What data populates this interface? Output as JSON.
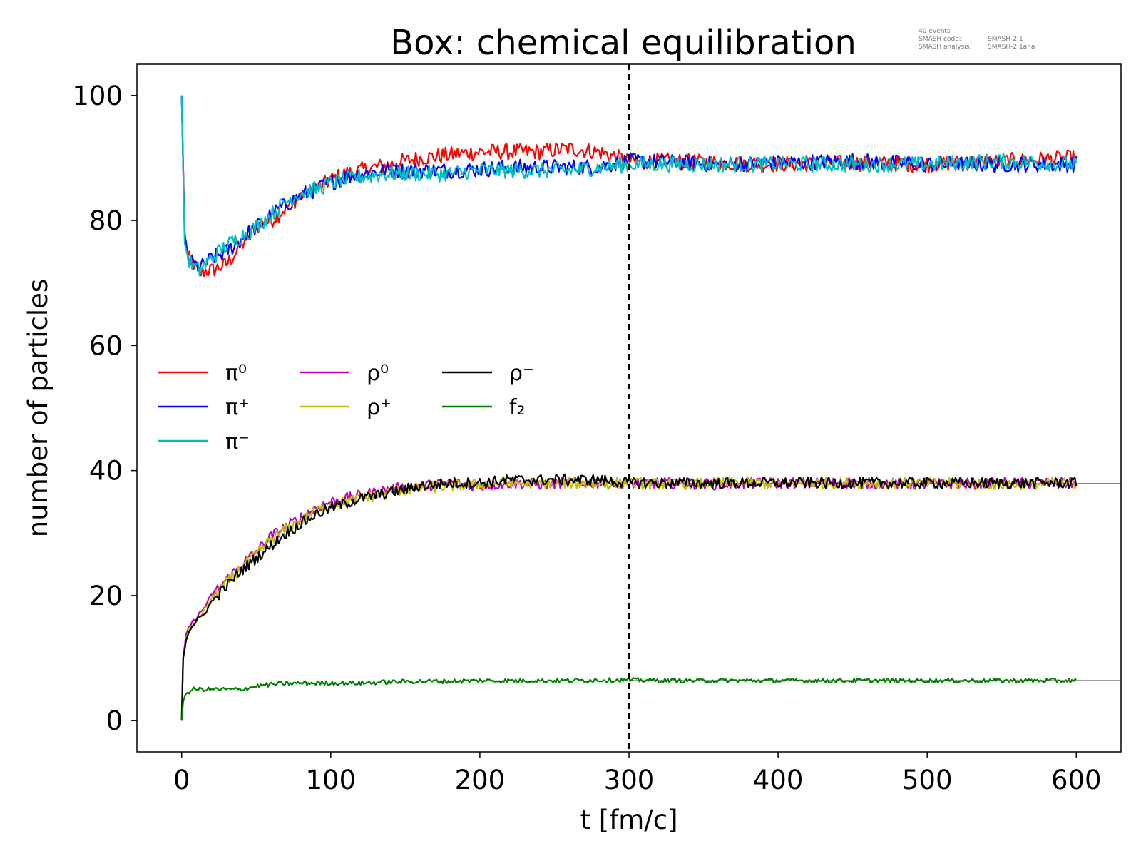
{
  "chart_data": {
    "type": "line",
    "title": "Box: chemical equilibration",
    "xlabel": "t [fm/c]",
    "ylabel": "number of particles",
    "xlim": [
      -30,
      630
    ],
    "ylim": [
      -5,
      105
    ],
    "xticks": [
      "0",
      "100",
      "200",
      "300",
      "400",
      "500",
      "600"
    ],
    "yticks": [
      "0",
      "20",
      "40",
      "60",
      "80",
      "100"
    ],
    "grid": false,
    "legend_position": "center-left",
    "equilibration_marker_t": 300,
    "annotation": {
      "events": "40 events",
      "code_label": "SMASH code:",
      "code_value": "SMASH-2.1",
      "analysis_label": "SMASH analysis:",
      "analysis_value": "SMASH-2.1ana"
    },
    "equilibrium_lines": [
      {
        "from_t": 300,
        "to_t": 630,
        "value": 89.2
      },
      {
        "from_t": 300,
        "to_t": 630,
        "value": 37.9
      },
      {
        "from_t": 300,
        "to_t": 630,
        "value": 6.4
      }
    ],
    "series": [
      {
        "name": "π⁰",
        "color": "#ff0000",
        "t": [
          0,
          2,
          4,
          8,
          12,
          16,
          20,
          30,
          40,
          50,
          60,
          70,
          80,
          90,
          100,
          110,
          120,
          140,
          160,
          180,
          200,
          220,
          240,
          260,
          280,
          300,
          330,
          360,
          400,
          450,
          500,
          550,
          600
        ],
        "values": [
          100,
          78,
          74,
          73,
          71.5,
          72,
          72,
          73,
          76,
          79,
          80,
          82,
          84,
          85,
          86.5,
          87.5,
          88,
          89,
          90,
          90.5,
          91,
          91,
          91,
          91.5,
          91,
          89.5,
          89.5,
          89.2,
          89,
          89.2,
          89,
          89.5,
          90
        ]
      },
      {
        "name": "π⁺",
        "color": "#0000ff",
        "t": [
          0,
          2,
          4,
          8,
          12,
          16,
          20,
          30,
          40,
          50,
          60,
          70,
          80,
          90,
          100,
          110,
          120,
          140,
          160,
          180,
          200,
          220,
          240,
          260,
          280,
          300,
          330,
          360,
          400,
          450,
          500,
          550,
          600
        ],
        "values": [
          100,
          77,
          74,
          73,
          72.5,
          73,
          74,
          75,
          77,
          79,
          81,
          82.5,
          84,
          85,
          86,
          87,
          87.5,
          88,
          88,
          88,
          88.2,
          88.5,
          88.5,
          88.5,
          88.6,
          89.5,
          89.3,
          89,
          89.2,
          89.5,
          89,
          89,
          89
        ]
      },
      {
        "name": "π⁻",
        "color": "#00bfbf",
        "t": [
          0,
          2,
          4,
          8,
          12,
          16,
          20,
          30,
          40,
          50,
          60,
          70,
          80,
          90,
          100,
          110,
          120,
          140,
          160,
          180,
          200,
          220,
          240,
          260,
          280,
          300,
          330,
          360,
          400,
          450,
          500,
          550,
          600
        ],
        "values": [
          100,
          77,
          74,
          72.5,
          72,
          73,
          74,
          76,
          77.5,
          79,
          81,
          83,
          84.5,
          85,
          86,
          86.5,
          87,
          87.5,
          87.5,
          87.5,
          88,
          88,
          88,
          88,
          88.5,
          89,
          89,
          89,
          89,
          89,
          89,
          89.5,
          89
        ]
      },
      {
        "name": "ρ⁰",
        "color": "#bf00bf",
        "t": [
          0,
          1,
          3,
          5,
          10,
          15,
          20,
          30,
          40,
          50,
          60,
          70,
          80,
          90,
          100,
          120,
          140,
          160,
          180,
          200,
          220,
          240,
          260,
          280,
          300,
          330,
          360,
          400,
          450,
          500,
          550,
          600
        ],
        "values": [
          0,
          10,
          13.5,
          15,
          16.5,
          18,
          20,
          22.5,
          25,
          27,
          29.5,
          31,
          32.5,
          34,
          35,
          36,
          37,
          37.5,
          38,
          37.5,
          38,
          37.8,
          38,
          38,
          38,
          38,
          37.8,
          38,
          38,
          37.8,
          38,
          38
        ]
      },
      {
        "name": "ρ⁺",
        "color": "#bfbf00",
        "t": [
          0,
          1,
          3,
          5,
          10,
          15,
          20,
          30,
          40,
          50,
          60,
          70,
          80,
          90,
          100,
          120,
          140,
          160,
          180,
          200,
          220,
          240,
          260,
          280,
          300,
          330,
          360,
          400,
          450,
          500,
          550,
          600
        ],
        "values": [
          0,
          10,
          13,
          14.5,
          16,
          17.5,
          19.5,
          22,
          24.5,
          26.5,
          29,
          30.5,
          32,
          33.5,
          34.5,
          35.5,
          36.5,
          37.2,
          37.5,
          37.8,
          38,
          38,
          38,
          37.8,
          38,
          37.8,
          38,
          38,
          38,
          38,
          37.8,
          38
        ]
      },
      {
        "name": "ρ⁻",
        "color": "#000000",
        "t": [
          0,
          1,
          3,
          5,
          10,
          15,
          20,
          30,
          40,
          50,
          60,
          70,
          80,
          90,
          100,
          120,
          140,
          160,
          180,
          200,
          220,
          240,
          260,
          280,
          300,
          330,
          360,
          400,
          450,
          500,
          550,
          600
        ],
        "values": [
          0,
          10,
          13,
          14.5,
          16,
          17,
          19,
          21.5,
          24,
          26,
          28,
          30,
          31.5,
          33,
          34,
          35.5,
          36.5,
          37.5,
          38,
          38,
          38.5,
          38.5,
          38.5,
          38.5,
          38,
          38,
          38,
          38,
          38,
          38,
          38,
          38
        ]
      },
      {
        "name": "f₂",
        "color": "#007f00",
        "t": [
          0,
          1,
          2,
          4,
          8,
          12,
          20,
          30,
          40,
          50,
          60,
          80,
          100,
          120,
          140,
          160,
          180,
          200,
          220,
          240,
          260,
          280,
          300,
          330,
          360,
          400,
          450,
          500,
          550,
          600
        ],
        "values": [
          0,
          3,
          4,
          4.5,
          5,
          5,
          5,
          5,
          5,
          5.5,
          5.8,
          6,
          6,
          6,
          6.2,
          6.3,
          6.3,
          6.4,
          6.4,
          6.4,
          6.4,
          6.5,
          6.5,
          6.4,
          6.4,
          6.4,
          6.4,
          6.4,
          6.4,
          6.4
        ]
      }
    ]
  }
}
